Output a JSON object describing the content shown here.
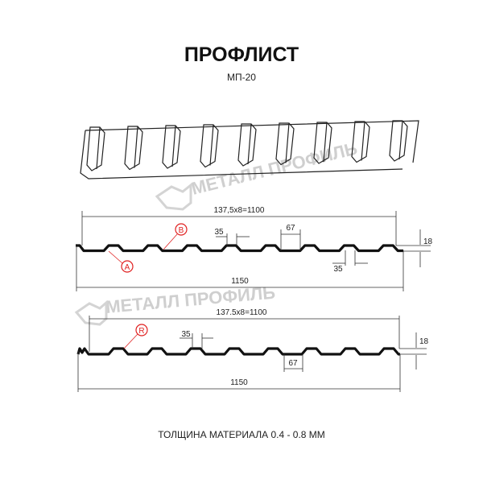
{
  "title": "ПРОФЛИСТ",
  "subtitle": "МП-20",
  "watermark": "МЕТАЛЛ ПРОФИЛЬ",
  "footer": "ТОЛЩИНА МАТЕРИАЛА 0.4 - 0.8 ММ",
  "profile1": {
    "pitch_label": "137,5x8=1100",
    "width_label": "1150",
    "top_width_label": "35",
    "bottom_width_label": "67",
    "bottom_top_label": "35",
    "height_label": "18",
    "marker_a": "A",
    "marker_b": "B"
  },
  "profile2": {
    "pitch_label": "137.5x8=1100",
    "width_label": "1150",
    "top_width_label": "35",
    "bottom_width_label": "67",
    "height_label": "18",
    "marker_r": "R"
  },
  "colors": {
    "profile": "#111111",
    "marker": "#e02020",
    "dimension": "#333333",
    "watermark": "#c8c8c8"
  }
}
